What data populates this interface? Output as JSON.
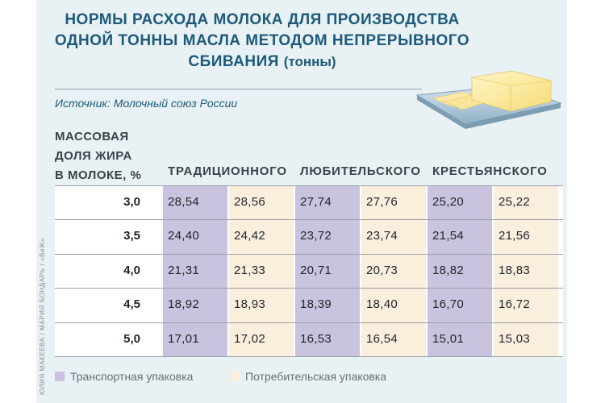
{
  "title": {
    "line1": "НОРМЫ РАСХОДА МОЛОКА ДЛЯ ПРОИЗВОДСТВА",
    "line2": "ОДНОЙ ТОННЫ МАСЛА МЕТОДОМ НЕПРЕРЫВНОГО",
    "line3": "СБИВАНИЯ",
    "unit": "(тонны)"
  },
  "source": "Источник: Молочный союз России",
  "row_header": {
    "line1": "МАССОВАЯ",
    "line2": "ДОЛЯ ЖИРА",
    "line3": "В МОЛОКЕ, %"
  },
  "credit": "ЮЛИЯ МАКЕЕВА / МАРИЯ БОНДАРЬ / «ВиЖ»",
  "colors": {
    "transport": "#c9c3df",
    "consumer": "#faeedd",
    "title": "#1e5a7a",
    "panel": "#e8f1f4"
  },
  "legend": {
    "transport": "Транспортная упаковка",
    "consumer": "Потребительская упаковка"
  },
  "chart_data": {
    "type": "table",
    "title": "НОРМЫ РАСХОДА МОЛОКА ДЛЯ ПРОИЗВОДСТВА ОДНОЙ ТОННЫ МАСЛА МЕТОДОМ НЕПРЕРЫВНОГО СБИВАНИЯ (тонны)",
    "groups": [
      "ТРАДИЦИОННОГО",
      "ЛЮБИТЕЛЬСКОГО",
      "КРЕСТЬЯНСКОГО"
    ],
    "fat": [
      "3,0",
      "3,5",
      "4,0",
      "4,5",
      "5,0"
    ],
    "rows": [
      [
        "28,54",
        "28,56",
        "27,74",
        "27,76",
        "25,20",
        "25,22"
      ],
      [
        "24,40",
        "24,42",
        "23,72",
        "23,74",
        "21,54",
        "21,56"
      ],
      [
        "21,31",
        "21,33",
        "20,71",
        "20,73",
        "18,82",
        "18,83"
      ],
      [
        "18,92",
        "18,93",
        "18,39",
        "18,40",
        "16,70",
        "16,72"
      ],
      [
        "17,01",
        "17,02",
        "16,53",
        "16,54",
        "15,01",
        "15,03"
      ]
    ]
  }
}
